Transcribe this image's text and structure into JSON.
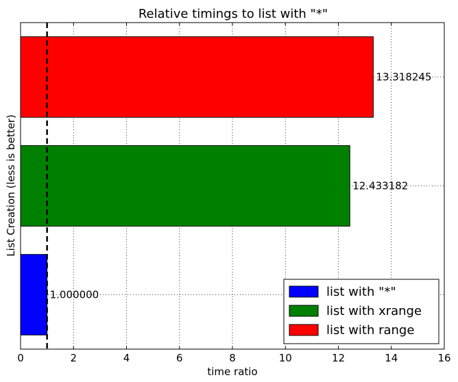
{
  "chart_data": {
    "type": "bar",
    "orientation": "horizontal",
    "title": "Relative timings to list with \"*\"",
    "xlabel": "time ratio",
    "ylabel": "List Creation (less is better)",
    "xlim": [
      0,
      16
    ],
    "xticks": [
      0,
      2,
      4,
      6,
      8,
      10,
      12,
      14,
      16
    ],
    "grid": true,
    "reference_line": {
      "x": 1.0,
      "style": "dashed"
    },
    "legend_position": "bottom-right",
    "series": [
      {
        "name": "list with \"*\"",
        "value": 1.0,
        "label": "1.000000",
        "color": "#0000ff"
      },
      {
        "name": "list with xrange",
        "value": 12.433182,
        "label": "12.433182",
        "color": "#008000"
      },
      {
        "name": "list with range",
        "value": 13.318245,
        "label": "13.318245",
        "color": "#ff0000"
      }
    ]
  }
}
